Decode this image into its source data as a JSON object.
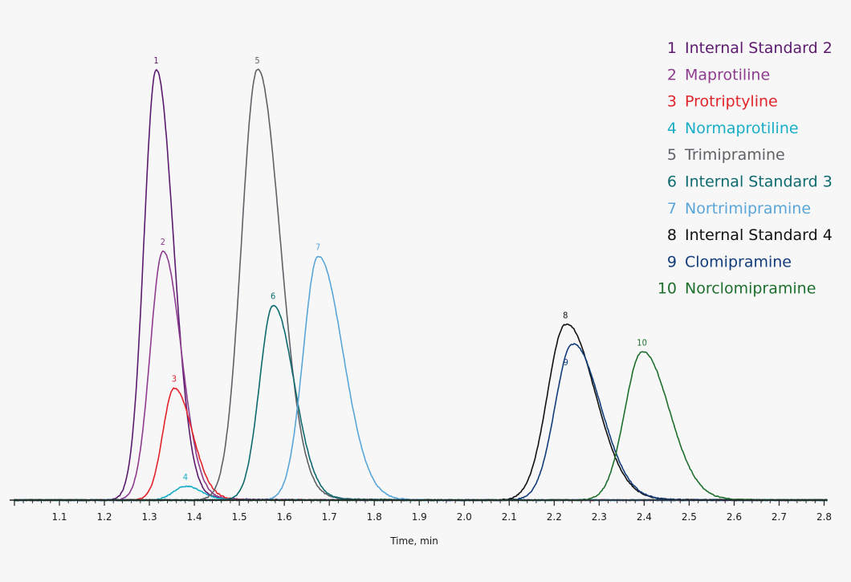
{
  "chart_data": {
    "type": "line",
    "title": "",
    "xlabel": "Time, min",
    "ylabel": "",
    "xlim": [
      1.0,
      2.82
    ],
    "ylim": [
      0,
      1.0
    ],
    "y_units": "relative intensity (peak 5 = 1.0)",
    "grid": false,
    "legend_position": "top-right",
    "x_ticks": [
      "1.1",
      "1.2",
      "1.3",
      "1.4",
      "1.5",
      "1.6",
      "1.7",
      "1.8",
      "1.9",
      "2.0",
      "2.1",
      "2.2",
      "2.3",
      "2.4",
      "2.5",
      "2.6",
      "2.7",
      "2.8"
    ],
    "series": [
      {
        "id": "1",
        "name": "Internal Standard 2",
        "color": "#5b1a6e",
        "peak_label": "1",
        "peak_x": 1.315,
        "peak_y": 1.0,
        "sigma_left": 0.027,
        "sigma_right": 0.038,
        "tail": 0.02
      },
      {
        "id": "2",
        "name": "Maprotiline",
        "color": "#8d3c8e",
        "peak_label": "2",
        "peak_x": 1.33,
        "peak_y": 0.578,
        "sigma_left": 0.028,
        "sigma_right": 0.04,
        "tail": 0.012
      },
      {
        "id": "3",
        "name": "Protriptyline",
        "color": "#e0242a",
        "peak_label": "3",
        "peak_x": 1.355,
        "peak_y": 0.26,
        "sigma_left": 0.025,
        "sigma_right": 0.04,
        "tail": 0.006
      },
      {
        "id": "4",
        "name": "Normaprotiline",
        "color": "#19aec6",
        "peak_label": "4",
        "peak_x": 1.38,
        "peak_y": 0.032,
        "sigma_left": 0.026,
        "sigma_right": 0.035,
        "tail": 0.002
      },
      {
        "id": "5",
        "name": "Trimipramine",
        "color": "#5e6166",
        "peak_label": "5",
        "peak_x": 1.54,
        "peak_y": 1.0,
        "sigma_left": 0.035,
        "sigma_right": 0.05,
        "tail": 0.025
      },
      {
        "id": "6",
        "name": "Internal Standard 3",
        "color": "#0e6a6e",
        "peak_label": "6",
        "peak_x": 1.575,
        "peak_y": 0.452,
        "sigma_left": 0.03,
        "sigma_right": 0.046,
        "tail": 0.01
      },
      {
        "id": "7",
        "name": "Nortrimipramine",
        "color": "#5ba6d8",
        "peak_label": "7",
        "peak_x": 1.675,
        "peak_y": 0.566,
        "sigma_left": 0.033,
        "sigma_right": 0.055,
        "tail": 0.008
      },
      {
        "id": "8",
        "name": "Internal Standard 4",
        "color": "#111111",
        "peak_label": "8",
        "peak_x": 2.225,
        "peak_y": 0.408,
        "sigma_left": 0.04,
        "sigma_right": 0.065,
        "tail": 0.015
      },
      {
        "id": "9",
        "name": "Clomipramine",
        "color": "#123c7a",
        "peak_label": "9",
        "peak_x": 2.24,
        "peak_y": 0.362,
        "sigma_left": 0.038,
        "sigma_right": 0.062,
        "tail": 0.012
      },
      {
        "id": "10",
        "name": "Norclomipramine",
        "color": "#1e6f2e",
        "peak_label": "10",
        "peak_x": 2.395,
        "peak_y": 0.344,
        "sigma_left": 0.038,
        "sigma_right": 0.06,
        "tail": 0.01
      }
    ]
  }
}
